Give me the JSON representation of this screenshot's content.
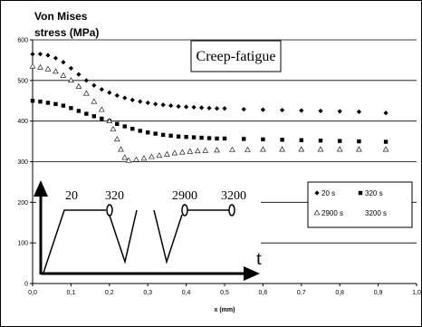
{
  "chart_data": {
    "type": "scatter",
    "ylabel_line1": "Von Mises",
    "ylabel_line2": "stress (MPa)",
    "xlabel": "x (mm)",
    "box_title": "Creep-fatigue",
    "xlim": [
      0,
      1.0
    ],
    "ylim": [
      0,
      600
    ],
    "x_ticks": [
      "0,0",
      "0,1",
      "0,2",
      "0,3",
      "0,4",
      "0,5",
      "0,6",
      "0,7",
      "0,8",
      "0,9",
      "1,0"
    ],
    "y_ticks": [
      "0",
      "100",
      "200",
      "300",
      "400",
      "500",
      "600"
    ],
    "grid": "horizontal",
    "legend_position": "right",
    "series": [
      {
        "name": "20 s",
        "marker": "diamond",
        "x": [
          0.0,
          0.02,
          0.04,
          0.06,
          0.08,
          0.1,
          0.12,
          0.14,
          0.16,
          0.18,
          0.2,
          0.22,
          0.24,
          0.26,
          0.28,
          0.3,
          0.32,
          0.34,
          0.36,
          0.38,
          0.4,
          0.42,
          0.44,
          0.46,
          0.48,
          0.5,
          0.55,
          0.6,
          0.65,
          0.7,
          0.75,
          0.8,
          0.85,
          0.92
        ],
        "y": [
          565,
          565,
          562,
          555,
          545,
          530,
          515,
          500,
          488,
          478,
          470,
          463,
          457,
          452,
          448,
          445,
          442,
          440,
          438,
          436,
          435,
          434,
          433,
          432,
          431,
          431,
          429,
          428,
          427,
          426,
          425,
          424,
          423,
          420
        ]
      },
      {
        "name": "320 s",
        "marker": "square",
        "x": [
          0.0,
          0.02,
          0.04,
          0.06,
          0.08,
          0.1,
          0.12,
          0.14,
          0.16,
          0.18,
          0.2,
          0.22,
          0.24,
          0.26,
          0.28,
          0.3,
          0.32,
          0.34,
          0.36,
          0.38,
          0.4,
          0.42,
          0.44,
          0.46,
          0.48,
          0.5,
          0.55,
          0.6,
          0.65,
          0.7,
          0.75,
          0.8,
          0.85,
          0.92
        ],
        "y": [
          450,
          448,
          445,
          442,
          438,
          432,
          425,
          418,
          412,
          406,
          400,
          393,
          387,
          381,
          376,
          372,
          369,
          366,
          364,
          362,
          361,
          360,
          359,
          358,
          357,
          357,
          356,
          355,
          354,
          353,
          352,
          351,
          350,
          349
        ]
      },
      {
        "name": "2900 s",
        "marker": "triangle",
        "x": [
          0.0,
          0.02,
          0.04,
          0.06,
          0.08,
          0.1,
          0.12,
          0.14,
          0.16,
          0.18,
          0.2,
          0.21,
          0.22,
          0.23,
          0.24,
          0.25,
          0.27,
          0.29,
          0.31,
          0.33,
          0.35,
          0.37,
          0.39,
          0.41,
          0.43,
          0.45,
          0.48,
          0.52,
          0.56,
          0.6,
          0.65,
          0.7,
          0.75,
          0.8,
          0.85,
          0.92
        ],
        "y": [
          535,
          532,
          528,
          522,
          512,
          500,
          485,
          468,
          448,
          428,
          400,
          380,
          355,
          330,
          310,
          303,
          305,
          308,
          312,
          315,
          318,
          321,
          323,
          325,
          326,
          327,
          328,
          329,
          329,
          330,
          330,
          330,
          330,
          330,
          330,
          330
        ]
      },
      {
        "name": "3200 s",
        "marker": "none",
        "x": [],
        "y": []
      }
    ],
    "inset": {
      "labels": [
        "20",
        "320",
        "2900",
        "3200"
      ],
      "axis_label": "t"
    }
  }
}
